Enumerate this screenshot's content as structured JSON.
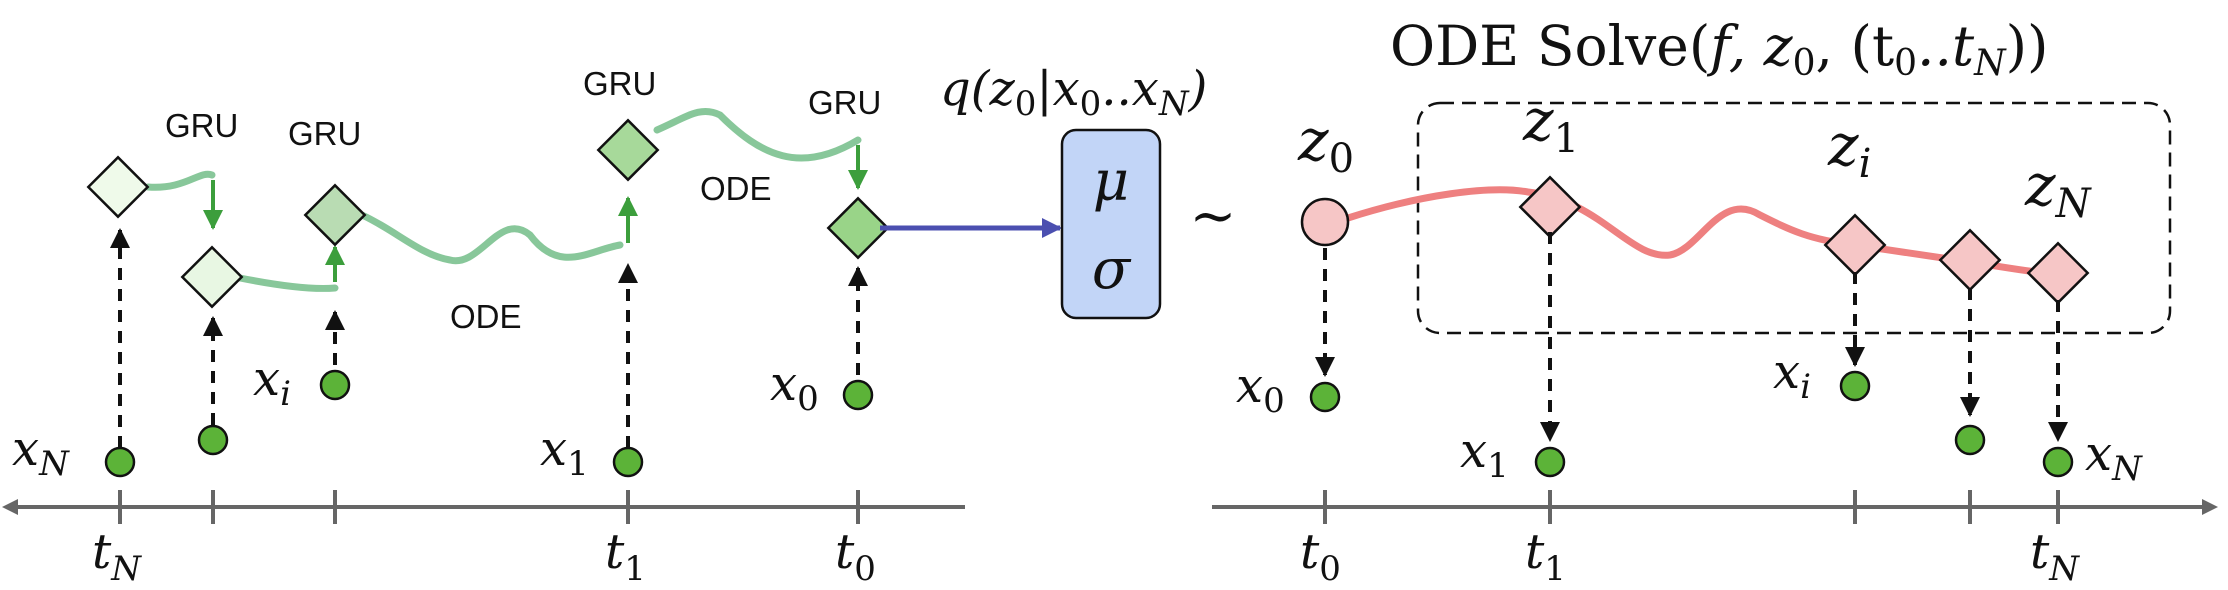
{
  "encoder": {
    "gru_labels": [
      "GRU",
      "GRU",
      "GRU",
      "GRU"
    ],
    "ode_labels": [
      "ODE",
      "ODE"
    ],
    "obs_labels": [
      "x",
      "x",
      "x",
      "x"
    ],
    "obs_subs": [
      "N",
      "i",
      "1",
      "0"
    ],
    "time_labels": [
      "t",
      "t",
      "t"
    ],
    "time_subs": [
      "N",
      "1",
      "0"
    ]
  },
  "posterior": {
    "label_prefix": "q(z",
    "label_sub": "0",
    "label_mid": "|x",
    "label_sub2": "0",
    "label_dots": "..x",
    "label_sub3": "N",
    "label_suffix": ")",
    "mu": "μ",
    "sigma": "σ",
    "tilde": "~"
  },
  "decoder": {
    "title_prefix": "ODE Solve(",
    "title_f": "f",
    "title_z": ", z",
    "title_z_sub": "0",
    "title_t": ", (t",
    "title_t_sub0": "0",
    "title_dots": "..t",
    "title_t_subN": "N",
    "title_suffix": "))",
    "latent_labels": [
      "z",
      "z",
      "z",
      "z"
    ],
    "latent_subs": [
      "0",
      "1",
      "i",
      "N"
    ],
    "obs_labels": [
      "x",
      "x",
      "x",
      "x"
    ],
    "obs_subs": [
      "0",
      "1",
      "i",
      "N"
    ],
    "time_labels": [
      "t",
      "t",
      "t"
    ],
    "time_subs": [
      "0",
      "1",
      "N"
    ]
  },
  "colors": {
    "green_dot": "#5cb338",
    "green_curve": "#88c79a",
    "green_arrow": "#3c9e3c",
    "pink_fill": "#f6c6c6",
    "pink_curve": "#ee8080",
    "blue_box": "#c2d5f7",
    "blue_arrow": "#4b4fb0",
    "axis": "#666666"
  }
}
